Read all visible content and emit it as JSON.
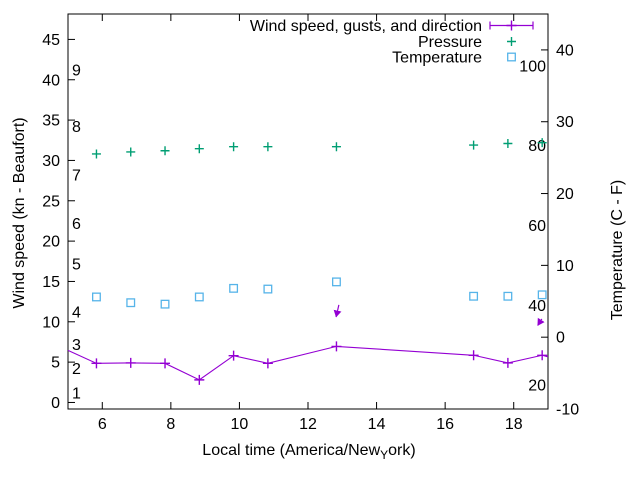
{
  "figure": {
    "background": "#ffffff",
    "axis_color": "#000000",
    "text_color": "#000000"
  },
  "chart_data": {
    "type": "line",
    "title": "",
    "legend": {
      "position": "top-right-inside",
      "entries": [
        {
          "label": "Wind speed, gusts, and direction",
          "style": "errorbar-line",
          "color": "#9400d3"
        },
        {
          "label": "Pressure",
          "style": "plus",
          "color": "#009e73"
        },
        {
          "label": "Temperature",
          "style": "open-square",
          "color": "#56b4e9"
        }
      ]
    },
    "x_axis": {
      "label_prefix": "Local time (America/New",
      "label_sub": "Y",
      "label_suffix": "ork)",
      "min": 5,
      "max": 19,
      "ticks": [
        6,
        8,
        10,
        12,
        14,
        16,
        18
      ],
      "grid": false
    },
    "y_axis_left": {
      "label": "Wind speed (kn - Beaufort)",
      "min": -0.81,
      "max": 48.15,
      "ticks": [
        0,
        5,
        10,
        15,
        20,
        25,
        30,
        35,
        40,
        45
      ]
    },
    "beaufort_inner_labels": [
      {
        "text": "1",
        "kn": 1
      },
      {
        "text": "2",
        "kn": 4
      },
      {
        "text": "3",
        "kn": 7
      },
      {
        "text": "4",
        "kn": 11
      },
      {
        "text": "5",
        "kn": 17
      },
      {
        "text": "6",
        "kn": 22
      },
      {
        "text": "7",
        "kn": 28
      },
      {
        "text": "8",
        "kn": 34
      },
      {
        "text": "9",
        "kn": 41
      }
    ],
    "y_axis_right": {
      "label": "Temperature (C - F)",
      "min": -10,
      "max": 45,
      "ticks": [
        -10,
        0,
        10,
        20,
        30,
        40
      ]
    },
    "fahrenheit_inner_labels": [
      {
        "text": "20",
        "f": 20
      },
      {
        "text": "40",
        "f": 40
      },
      {
        "text": "60",
        "f": 60
      },
      {
        "text": "80",
        "f": 80
      },
      {
        "text": "100",
        "f": 100
      }
    ],
    "series": {
      "wind": {
        "name": "Wind speed, gusts, and direction",
        "color": "#9400d3",
        "axis": "left",
        "t": [
          5.0,
          5.83,
          6.83,
          7.83,
          8.83,
          9.83,
          10.83,
          12.83,
          16.83,
          17.83,
          18.83,
          19.0
        ],
        "kn": [
          6.45,
          4.85,
          4.9,
          4.85,
          2.8,
          5.8,
          4.85,
          6.95,
          5.85,
          4.9,
          5.85,
          5.65
        ],
        "marker": [
          false,
          true,
          true,
          true,
          true,
          true,
          true,
          true,
          true,
          true,
          true,
          false
        ]
      },
      "pressure": {
        "name": "Pressure",
        "color": "#009e73",
        "axis": "left",
        "t": [
          5.83,
          6.83,
          7.83,
          8.83,
          9.83,
          10.83,
          12.83,
          16.83,
          17.83,
          18.83
        ],
        "kn": [
          30.8,
          31.05,
          31.2,
          31.45,
          31.7,
          31.7,
          31.7,
          31.9,
          32.1,
          32.2
        ]
      },
      "temperature": {
        "name": "Temperature",
        "color": "#56b4e9",
        "axis": "right",
        "t": [
          5.83,
          6.83,
          7.83,
          8.83,
          9.83,
          10.83,
          12.83,
          16.83,
          17.83,
          18.83
        ],
        "c": [
          5.6,
          4.8,
          4.6,
          5.6,
          6.8,
          6.7,
          7.7,
          5.7,
          5.7,
          5.9
        ]
      },
      "wind_direction_arrows": {
        "color": "#9400d3",
        "arrows": [
          {
            "t_tail": 12.9,
            "kn_tail": 12.1,
            "t_head": 12.82,
            "kn_head": 10.6
          },
          {
            "t_tail": 18.82,
            "kn_tail": 10.35,
            "t_head": 18.7,
            "kn_head": 9.55
          }
        ]
      }
    }
  }
}
